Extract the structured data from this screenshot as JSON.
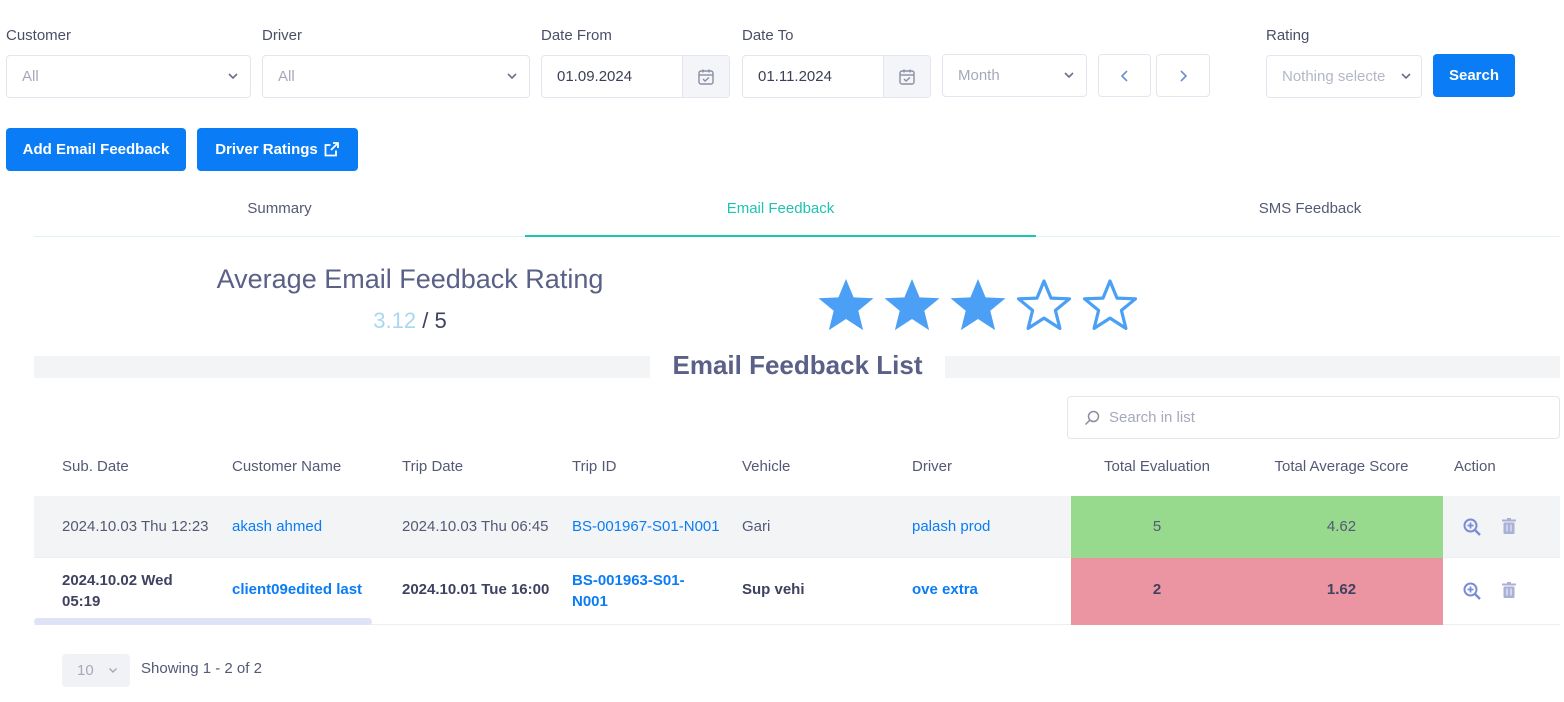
{
  "filters": {
    "customer": {
      "label": "Customer",
      "value": "All"
    },
    "driver": {
      "label": "Driver",
      "value": "All"
    },
    "date_from": {
      "label": "Date From",
      "value": "01.09.2024"
    },
    "date_to": {
      "label": "Date To",
      "value": "01.11.2024"
    },
    "period": {
      "value": "Month"
    },
    "rating": {
      "label": "Rating",
      "placeholder": "Nothing selecte"
    },
    "search_button": "Search"
  },
  "actions": {
    "add_email_feedback": "Add Email Feedback",
    "driver_ratings": "Driver Ratings"
  },
  "tabs": [
    {
      "label": "Summary"
    },
    {
      "label": "Email Feedback",
      "active": true
    },
    {
      "label": "SMS Feedback"
    }
  ],
  "rating_summary": {
    "title": "Average Email Feedback Rating",
    "value": "3.12",
    "separator": "/ 5",
    "stars_filled": 3,
    "stars_total": 5
  },
  "list": {
    "title": "Email Feedback List",
    "search_placeholder": "Search in list",
    "columns": [
      "Sub. Date",
      "Customer Name",
      "Trip Date",
      "Trip ID",
      "Vehicle",
      "Driver",
      "Total Evaluation",
      "Total Average Score",
      "Action"
    ],
    "rows": [
      {
        "sub_date": "2024.10.03 Thu 12:23",
        "customer": "akash ahmed",
        "trip_date": "2024.10.03 Thu 06:45",
        "trip_id": "BS-001967-S01-N001",
        "vehicle": "Gari",
        "driver": "palash prod",
        "total_evaluation": "5",
        "total_average_score": "4.62"
      },
      {
        "sub_date_line1": "2024.10.02 Wed",
        "sub_date_line2": "05:19",
        "customer": "client09edited last",
        "trip_date": "2024.10.01 Tue 16:00",
        "trip_id_line1": "BS-001963-S01-",
        "trip_id_line2": "N001",
        "vehicle": "Sup vehi",
        "driver": "ove extra",
        "total_evaluation": "2",
        "total_average_score": "1.62"
      }
    ]
  },
  "pagination": {
    "page_size": "10",
    "showing": "Showing 1 - 2 of 2"
  },
  "colors": {
    "primary": "#0a7cf5",
    "accent_tab": "#1ec3b1",
    "good_score_bg": "#97d98d",
    "bad_score_bg": "#ec95a2",
    "star": "#4b9ff5"
  }
}
